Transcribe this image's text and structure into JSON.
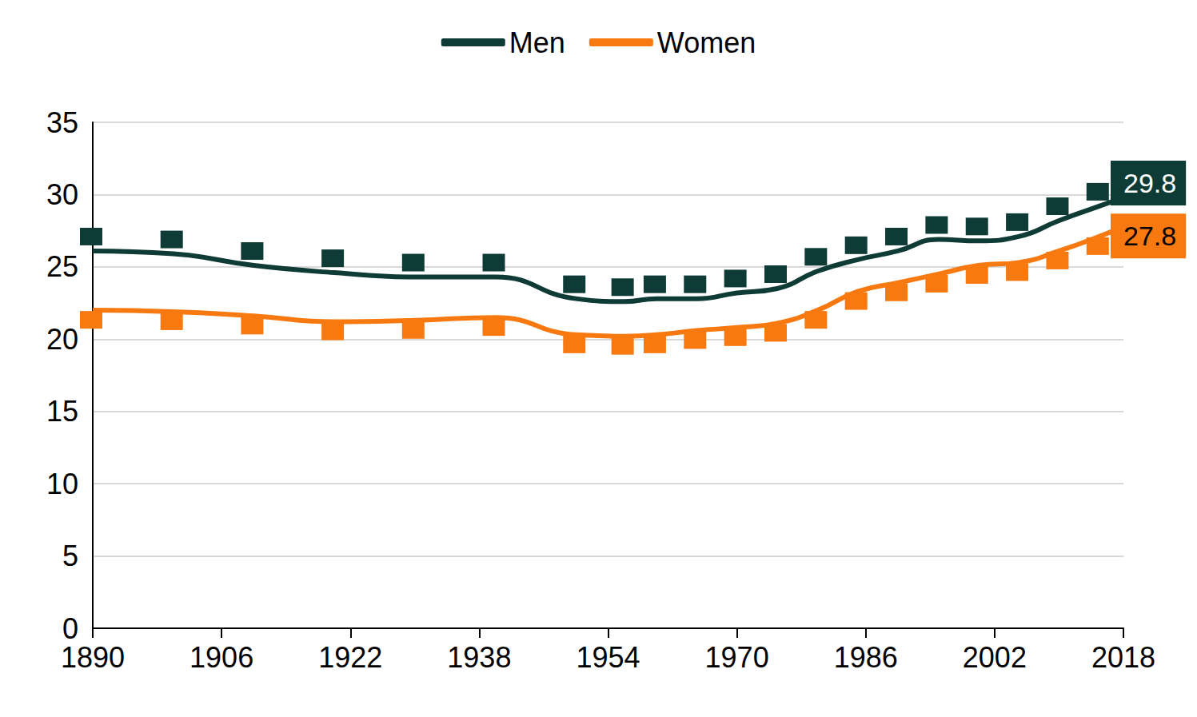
{
  "chart_data": {
    "type": "line",
    "x": [
      1890,
      1900,
      1910,
      1920,
      1930,
      1940,
      1950,
      1956,
      1960,
      1965,
      1970,
      1975,
      1980,
      1985,
      1990,
      1995,
      2000,
      2005,
      2010,
      2015,
      2018
    ],
    "series": [
      {
        "name": "Men",
        "color": "#0e3b36",
        "values": [
          26.1,
          25.9,
          25.1,
          24.6,
          24.3,
          24.3,
          22.8,
          22.6,
          22.8,
          22.8,
          23.2,
          23.5,
          24.7,
          25.5,
          26.1,
          26.9,
          26.8,
          27.1,
          28.2,
          29.2,
          29.8
        ],
        "value_labels": [
          null,
          null,
          null,
          null,
          null,
          null,
          null,
          null,
          null,
          null,
          null,
          null,
          null,
          null,
          null,
          null,
          null,
          null,
          null,
          null,
          "29.8"
        ]
      },
      {
        "name": "Women",
        "color": "#f7790f",
        "values": [
          22.0,
          21.9,
          21.6,
          21.2,
          21.3,
          21.5,
          20.3,
          20.2,
          20.3,
          20.6,
          20.8,
          21.1,
          22.0,
          23.3,
          23.9,
          24.5,
          25.1,
          25.3,
          26.1,
          27.1,
          27.8
        ],
        "value_labels": [
          null,
          null,
          null,
          null,
          null,
          null,
          null,
          null,
          null,
          null,
          null,
          null,
          null,
          null,
          null,
          null,
          null,
          null,
          null,
          null,
          "27.8"
        ]
      }
    ],
    "xlim": [
      1890,
      2018
    ],
    "xticks": [
      1890,
      1906,
      1922,
      1938,
      1954,
      1970,
      1986,
      2002,
      2018
    ],
    "ylim": [
      0,
      35
    ],
    "yticks": [
      0,
      5,
      10,
      15,
      20,
      25,
      30,
      35
    ],
    "grid": true,
    "legend": "top"
  }
}
